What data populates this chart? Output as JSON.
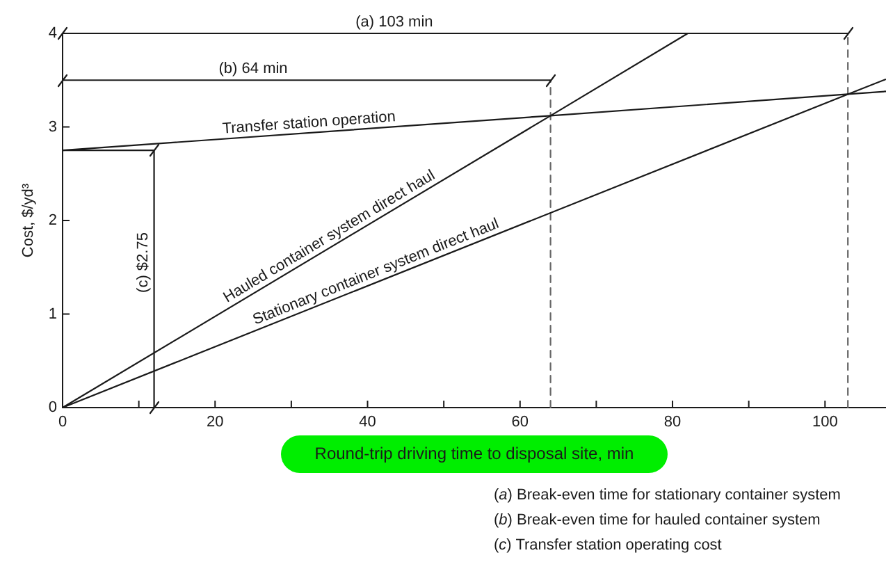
{
  "chart_data": {
    "type": "line",
    "xlabel": "Round-trip driving time to disposal site, min",
    "ylabel": "Cost, $/yd³",
    "series": [
      {
        "name": "Transfer station operation",
        "color": "#1a1a1a",
        "x": [
          0,
          64,
          103,
          108
        ],
        "values": [
          2.75,
          3.12,
          3.35,
          3.38
        ]
      },
      {
        "name": "Hauled container system direct haul",
        "color": "#1a1a1a",
        "x": [
          0,
          64,
          82
        ],
        "values": [
          0,
          3.12,
          4
        ]
      },
      {
        "name": "Stationary container system direct haul",
        "color": "#1a1a1a",
        "x": [
          0,
          103,
          108
        ],
        "values": [
          0,
          3.35,
          3.51
        ]
      },
      {
        "color": "#1a1a1a",
        "x": [
          0,
          103
        ],
        "values": [
          4,
          4
        ],
        "marker": "cross"
      },
      {
        "color": "#1a1a1a",
        "x": [
          0,
          64
        ],
        "values": [
          3.5,
          3.5
        ],
        "marker": "cross"
      },
      {
        "color": "#1a1a1a",
        "x": [
          12,
          12
        ],
        "values": [
          0,
          2.75
        ],
        "marker": "cross"
      },
      {
        "color": "#1a1a1a",
        "x": [
          0,
          12
        ],
        "values": [
          2.75,
          2.75
        ]
      }
    ],
    "xlim": [
      0,
      108
    ],
    "ylim": [
      0,
      4
    ],
    "xticks": [
      0,
      {
        "value": 10,
        "label": null
      },
      20,
      {
        "value": 30,
        "label": null
      },
      40,
      {
        "value": 50,
        "label": null
      },
      60,
      {
        "value": 70,
        "label": null
      },
      80,
      {
        "value": 90,
        "label": null
      },
      100
    ],
    "yticks": [
      0,
      1,
      2,
      3,
      4
    ],
    "ref_lines": [
      {
        "axis": "x",
        "value": 103,
        "line_style": "dashed",
        "color": "#666666"
      },
      {
        "axis": "x",
        "value": 64,
        "line_style": "dashed",
        "color": "#666666"
      }
    ],
    "annotations": [
      {
        "text": "(a) 103 min",
        "x": 43.5,
        "y": 4
      },
      {
        "text": "(b) 64 min",
        "x": 25,
        "y": 3.5
      },
      {
        "text": "(c) $2.75",
        "x": 12,
        "y": 1.55
      },
      "(a) Break-even time for stationary container system",
      "(b) Break-even time for hauled container system",
      "(c) Transfer station operating cost"
    ],
    "grid": false,
    "legend": false,
    "marker": "none",
    "line_style": "solid"
  }
}
